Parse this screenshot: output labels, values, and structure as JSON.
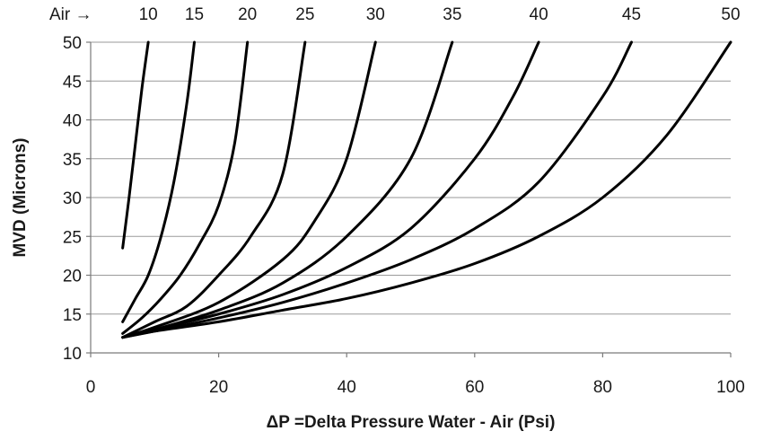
{
  "chart_data": {
    "type": "line",
    "title": "",
    "xlabel": "ΔP =Delta Pressure Water - Air (Psi)",
    "ylabel": "MVD (Microns)",
    "xlim": [
      0,
      100
    ],
    "ylim": [
      10,
      50
    ],
    "xticks": [
      0,
      20,
      40,
      60,
      80,
      100
    ],
    "yticks": [
      10,
      15,
      20,
      25,
      30,
      35,
      40,
      45,
      50
    ],
    "grid": "horizontal",
    "air_header_label": "Air →",
    "series": [
      {
        "name": "10",
        "points": [
          [
            5,
            23.5
          ],
          [
            6,
            30
          ],
          [
            7,
            37
          ],
          [
            8,
            44
          ],
          [
            9,
            50
          ]
        ]
      },
      {
        "name": "15",
        "points": [
          [
            5,
            14
          ],
          [
            7,
            17
          ],
          [
            9,
            20
          ],
          [
            11,
            25
          ],
          [
            13,
            32
          ],
          [
            15,
            42
          ],
          [
            16.2,
            50
          ]
        ]
      },
      {
        "name": "20",
        "points": [
          [
            5,
            12.5
          ],
          [
            8,
            14.5
          ],
          [
            11,
            17
          ],
          [
            14,
            20
          ],
          [
            17,
            24
          ],
          [
            20,
            29
          ],
          [
            22.5,
            37
          ],
          [
            24.5,
            50
          ]
        ]
      },
      {
        "name": "25",
        "points": [
          [
            5,
            12
          ],
          [
            10,
            14
          ],
          [
            15,
            16
          ],
          [
            20,
            20
          ],
          [
            25,
            25
          ],
          [
            30,
            33
          ],
          [
            33.5,
            50
          ]
        ]
      },
      {
        "name": "30",
        "points": [
          [
            5,
            12
          ],
          [
            10,
            13.3
          ],
          [
            20,
            16.5
          ],
          [
            30,
            22
          ],
          [
            35,
            27
          ],
          [
            40,
            35
          ],
          [
            44.5,
            50
          ]
        ]
      },
      {
        "name": "35",
        "points": [
          [
            5,
            12
          ],
          [
            10,
            13
          ],
          [
            20,
            15.5
          ],
          [
            30,
            19
          ],
          [
            40,
            25
          ],
          [
            50,
            35
          ],
          [
            56.5,
            50
          ]
        ]
      },
      {
        "name": "40",
        "points": [
          [
            5,
            12
          ],
          [
            10,
            13
          ],
          [
            20,
            15
          ],
          [
            30,
            17.5
          ],
          [
            40,
            21
          ],
          [
            50,
            26
          ],
          [
            60,
            35
          ],
          [
            66,
            43
          ],
          [
            70,
            50
          ]
        ]
      },
      {
        "name": "45",
        "points": [
          [
            5,
            12
          ],
          [
            10,
            12.8
          ],
          [
            20,
            14.5
          ],
          [
            30,
            16.5
          ],
          [
            40,
            19
          ],
          [
            50,
            22
          ],
          [
            60,
            26
          ],
          [
            70,
            32
          ],
          [
            80,
            43
          ],
          [
            84.5,
            50
          ]
        ]
      },
      {
        "name": "50",
        "points": [
          [
            5,
            12
          ],
          [
            10,
            12.8
          ],
          [
            20,
            14
          ],
          [
            30,
            15.5
          ],
          [
            40,
            17
          ],
          [
            50,
            19
          ],
          [
            60,
            21.5
          ],
          [
            70,
            25
          ],
          [
            80,
            30
          ],
          [
            90,
            38
          ],
          [
            100,
            50
          ]
        ]
      }
    ]
  }
}
